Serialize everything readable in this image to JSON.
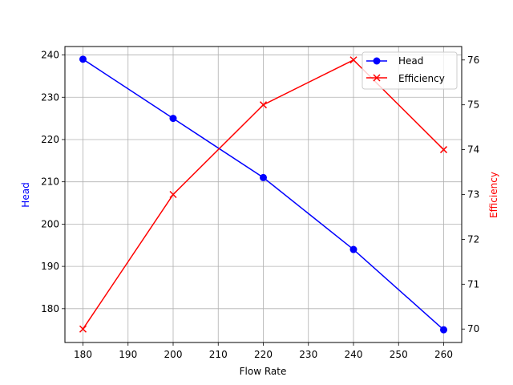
{
  "chart_data": {
    "type": "line",
    "title": "",
    "xlabel": "Flow Rate",
    "x": [
      180,
      200,
      220,
      240,
      260
    ],
    "series": [
      {
        "name": "Head",
        "axis": "left",
        "color": "#0000ff",
        "marker": "circle",
        "values": [
          239,
          225,
          211,
          194,
          175
        ]
      },
      {
        "name": "Efficiency",
        "axis": "right",
        "color": "#ff0000",
        "marker": "x",
        "values": [
          70,
          73,
          75,
          76,
          74
        ]
      }
    ],
    "ylabel_left": "Head",
    "ylabel_right": "Efficiency",
    "xlim": [
      176,
      264
    ],
    "ylim_left": [
      172,
      242
    ],
    "ylim_right": [
      69.7,
      76.3
    ],
    "x_ticks": [
      180,
      190,
      200,
      210,
      220,
      230,
      240,
      250,
      260
    ],
    "y_left_ticks": [
      180,
      190,
      200,
      210,
      220,
      230,
      240
    ],
    "y_right_ticks": [
      70,
      71,
      72,
      73,
      74,
      75,
      76
    ],
    "grid": true,
    "legend_position": "upper right"
  },
  "labels": {
    "xlabel": "Flow Rate",
    "ylabel_left": "Head",
    "ylabel_right": "Efficiency",
    "legend_head": "Head",
    "legend_efficiency": "Efficiency"
  }
}
